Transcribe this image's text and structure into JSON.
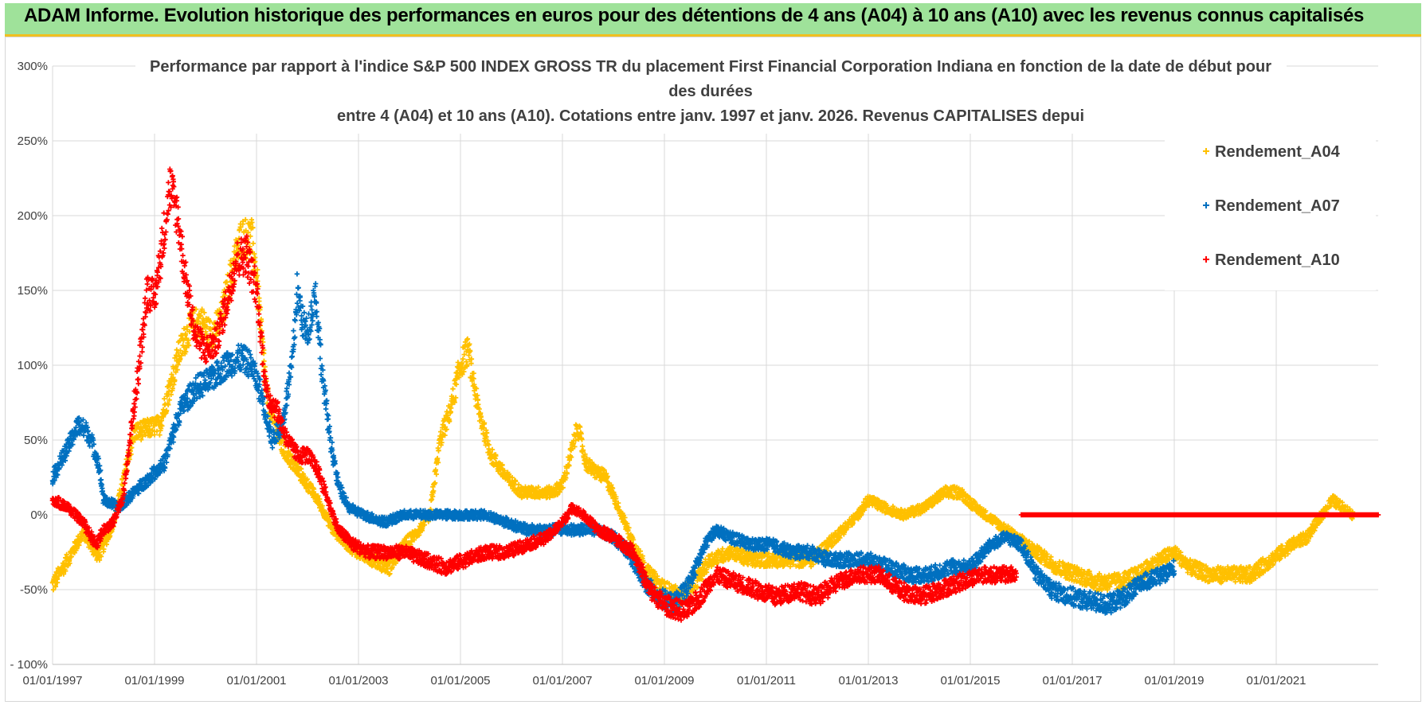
{
  "banner": {
    "text": "ADAM Informe. Evolution historique des performances en euros pour des détentions de 4 ans (A04) à 10 ans (A10) avec les revenus connus capitalisés"
  },
  "chart_data": {
    "type": "scatter",
    "title_lines": [
      "Performance par rapport à l'indice S&P 500 INDEX GROSS TR  du placement First Financial Corporation Indiana en fonction de la date de début pour",
      "des durées",
      "entre 4 (A04) et 10 ans (A10).  Cotations entre janv. 1997 et janv. 2026. Revenus CAPITALISES depui"
    ],
    "x_tick_labels": [
      "01/01/1997",
      "01/01/1999",
      "01/01/2001",
      "01/01/2003",
      "01/01/2005",
      "01/01/2007",
      "01/01/2009",
      "01/01/2011",
      "01/01/2013",
      "01/01/2015",
      "01/01/2017",
      "01/01/2019",
      "01/01/2021"
    ],
    "x_range": [
      1997.0,
      2023.0
    ],
    "y_tick_labels": [
      "300%",
      "250%",
      "200%",
      "150%",
      "100%",
      "50%",
      "0%",
      "-50%",
      "- 100%"
    ],
    "y_range": [
      -100,
      300
    ],
    "y_unit": "%",
    "grid": true,
    "legend_position": "top-right",
    "series": [
      {
        "name": "Rendement_A04",
        "color": "#ffc000",
        "anchors": [
          [
            1997.0,
            -47
          ],
          [
            1997.3,
            -30
          ],
          [
            1997.6,
            -12
          ],
          [
            1997.9,
            -28
          ],
          [
            1998.2,
            -5
          ],
          [
            1998.4,
            25
          ],
          [
            1998.6,
            55
          ],
          [
            1998.9,
            58
          ],
          [
            1999.1,
            60
          ],
          [
            1999.3,
            85
          ],
          [
            1999.5,
            110
          ],
          [
            1999.7,
            125
          ],
          [
            1999.9,
            130
          ],
          [
            2000.1,
            120
          ],
          [
            2000.3,
            130
          ],
          [
            2000.5,
            160
          ],
          [
            2000.7,
            185
          ],
          [
            2000.9,
            185
          ],
          [
            2001.0,
            160
          ],
          [
            2001.2,
            80
          ],
          [
            2001.5,
            45
          ],
          [
            2001.8,
            30
          ],
          [
            2002.0,
            20
          ],
          [
            2002.2,
            10
          ],
          [
            2002.5,
            -10
          ],
          [
            2002.8,
            -20
          ],
          [
            2003.0,
            -25
          ],
          [
            2003.3,
            -30
          ],
          [
            2003.6,
            -35
          ],
          [
            2003.9,
            -20
          ],
          [
            2004.2,
            -10
          ],
          [
            2004.4,
            0
          ],
          [
            2004.6,
            50
          ],
          [
            2004.8,
            70
          ],
          [
            2005.0,
            100
          ],
          [
            2005.15,
            110
          ],
          [
            2005.35,
            70
          ],
          [
            2005.6,
            40
          ],
          [
            2005.9,
            25
          ],
          [
            2006.2,
            15
          ],
          [
            2006.5,
            15
          ],
          [
            2006.8,
            15
          ],
          [
            2007.0,
            20
          ],
          [
            2007.2,
            45
          ],
          [
            2007.3,
            60
          ],
          [
            2007.45,
            35
          ],
          [
            2007.6,
            30
          ],
          [
            2007.85,
            25
          ],
          [
            2008.1,
            5
          ],
          [
            2008.4,
            -20
          ],
          [
            2008.7,
            -40
          ],
          [
            2009.0,
            -50
          ],
          [
            2009.3,
            -55
          ],
          [
            2009.6,
            -45
          ],
          [
            2009.9,
            -30
          ],
          [
            2010.3,
            -25
          ],
          [
            2010.7,
            -30
          ],
          [
            2011.1,
            -30
          ],
          [
            2011.5,
            -30
          ],
          [
            2011.9,
            -30
          ],
          [
            2012.2,
            -20
          ],
          [
            2012.5,
            -10
          ],
          [
            2012.8,
            0
          ],
          [
            2013.0,
            10
          ],
          [
            2013.3,
            5
          ],
          [
            2013.7,
            0
          ],
          [
            2014.1,
            5
          ],
          [
            2014.5,
            15
          ],
          [
            2014.8,
            15
          ],
          [
            2015.1,
            5
          ],
          [
            2015.5,
            -5
          ],
          [
            2015.9,
            -15
          ],
          [
            2016.3,
            -25
          ],
          [
            2016.7,
            -35
          ],
          [
            2017.1,
            -40
          ],
          [
            2017.5,
            -45
          ],
          [
            2017.9,
            -45
          ],
          [
            2018.3,
            -40
          ],
          [
            2018.7,
            -30
          ],
          [
            2019.0,
            -25
          ],
          [
            2019.3,
            -35
          ],
          [
            2019.7,
            -40
          ],
          [
            2020.1,
            -40
          ],
          [
            2020.5,
            -40
          ],
          [
            2020.9,
            -30
          ],
          [
            2021.3,
            -20
          ],
          [
            2021.6,
            -15
          ],
          [
            2021.9,
            0
          ],
          [
            2022.1,
            10
          ],
          [
            2022.3,
            5
          ],
          [
            2022.5,
            0
          ]
        ]
      },
      {
        "name": "Rendement_A07",
        "color": "#0070c0",
        "anchors": [
          [
            1997.0,
            25
          ],
          [
            1997.3,
            45
          ],
          [
            1997.5,
            60
          ],
          [
            1997.7,
            55
          ],
          [
            1997.9,
            35
          ],
          [
            1998.0,
            10
          ],
          [
            1998.3,
            5
          ],
          [
            1998.6,
            15
          ],
          [
            1998.9,
            25
          ],
          [
            1999.2,
            35
          ],
          [
            1999.5,
            70
          ],
          [
            1999.8,
            85
          ],
          [
            2000.1,
            90
          ],
          [
            2000.4,
            100
          ],
          [
            2000.7,
            105
          ],
          [
            2000.9,
            100
          ],
          [
            2001.1,
            80
          ],
          [
            2001.3,
            50
          ],
          [
            2001.5,
            60
          ],
          [
            2001.7,
            100
          ],
          [
            2001.8,
            150
          ],
          [
            2001.9,
            130
          ],
          [
            2002.0,
            120
          ],
          [
            2002.15,
            150
          ],
          [
            2002.3,
            90
          ],
          [
            2002.45,
            50
          ],
          [
            2002.6,
            20
          ],
          [
            2002.8,
            5
          ],
          [
            2003.1,
            0
          ],
          [
            2003.5,
            -5
          ],
          [
            2003.9,
            0
          ],
          [
            2004.3,
            0
          ],
          [
            2004.7,
            0
          ],
          [
            2005.1,
            0
          ],
          [
            2005.5,
            0
          ],
          [
            2005.9,
            -5
          ],
          [
            2006.3,
            -10
          ],
          [
            2006.7,
            -10
          ],
          [
            2007.0,
            -10
          ],
          [
            2007.4,
            -10
          ],
          [
            2007.7,
            -10
          ],
          [
            2008.0,
            -15
          ],
          [
            2008.3,
            -25
          ],
          [
            2008.6,
            -45
          ],
          [
            2008.9,
            -55
          ],
          [
            2009.2,
            -60
          ],
          [
            2009.5,
            -45
          ],
          [
            2009.8,
            -20
          ],
          [
            2010.0,
            -10
          ],
          [
            2010.3,
            -15
          ],
          [
            2010.7,
            -20
          ],
          [
            2011.1,
            -20
          ],
          [
            2011.5,
            -25
          ],
          [
            2011.9,
            -25
          ],
          [
            2012.2,
            -30
          ],
          [
            2012.6,
            -30
          ],
          [
            2013.0,
            -30
          ],
          [
            2013.4,
            -35
          ],
          [
            2013.8,
            -40
          ],
          [
            2014.2,
            -40
          ],
          [
            2014.6,
            -35
          ],
          [
            2015.0,
            -35
          ],
          [
            2015.4,
            -20
          ],
          [
            2015.7,
            -15
          ],
          [
            2016.0,
            -20
          ],
          [
            2016.3,
            -40
          ],
          [
            2016.6,
            -50
          ],
          [
            2017.0,
            -55
          ],
          [
            2017.4,
            -58
          ],
          [
            2017.7,
            -60
          ],
          [
            2018.0,
            -55
          ],
          [
            2018.4,
            -45
          ],
          [
            2018.8,
            -40
          ],
          [
            2019.0,
            -35
          ]
        ]
      },
      {
        "name": "Rendement_A10",
        "color": "#ff0000",
        "anchors": [
          [
            1997.0,
            10
          ],
          [
            1997.3,
            5
          ],
          [
            1997.6,
            -5
          ],
          [
            1997.85,
            -20
          ],
          [
            1998.0,
            -10
          ],
          [
            1998.2,
            -5
          ],
          [
            1998.4,
            15
          ],
          [
            1998.55,
            60
          ],
          [
            1998.7,
            100
          ],
          [
            1998.85,
            150
          ],
          [
            1999.0,
            145
          ],
          [
            1999.15,
            180
          ],
          [
            1999.3,
            220
          ],
          [
            1999.45,
            200
          ],
          [
            1999.6,
            160
          ],
          [
            1999.8,
            120
          ],
          [
            2000.0,
            110
          ],
          [
            2000.2,
            115
          ],
          [
            2000.4,
            140
          ],
          [
            2000.6,
            170
          ],
          [
            2000.8,
            175
          ],
          [
            2001.0,
            150
          ],
          [
            2001.2,
            80
          ],
          [
            2001.4,
            70
          ],
          [
            2001.6,
            50
          ],
          [
            2001.8,
            40
          ],
          [
            2002.0,
            40
          ],
          [
            2002.2,
            30
          ],
          [
            2002.4,
            10
          ],
          [
            2002.6,
            -10
          ],
          [
            2002.9,
            -20
          ],
          [
            2003.2,
            -25
          ],
          [
            2003.6,
            -25
          ],
          [
            2003.9,
            -25
          ],
          [
            2004.3,
            -30
          ],
          [
            2004.7,
            -35
          ],
          [
            2005.1,
            -30
          ],
          [
            2005.5,
            -25
          ],
          [
            2005.9,
            -25
          ],
          [
            2006.3,
            -20
          ],
          [
            2006.7,
            -15
          ],
          [
            2007.0,
            -5
          ],
          [
            2007.2,
            5
          ],
          [
            2007.4,
            0
          ],
          [
            2007.7,
            -10
          ],
          [
            2008.0,
            -15
          ],
          [
            2008.4,
            -25
          ],
          [
            2008.7,
            -50
          ],
          [
            2009.0,
            -60
          ],
          [
            2009.4,
            -65
          ],
          [
            2009.7,
            -55
          ],
          [
            2010.0,
            -40
          ],
          [
            2010.4,
            -45
          ],
          [
            2010.8,
            -50
          ],
          [
            2011.2,
            -55
          ],
          [
            2011.6,
            -50
          ],
          [
            2012.0,
            -55
          ],
          [
            2012.4,
            -45
          ],
          [
            2012.8,
            -40
          ],
          [
            2013.2,
            -40
          ],
          [
            2013.6,
            -50
          ],
          [
            2014.0,
            -55
          ],
          [
            2014.4,
            -50
          ],
          [
            2014.8,
            -45
          ],
          [
            2015.2,
            -40
          ],
          [
            2015.6,
            -40
          ],
          [
            2015.9,
            -40
          ]
        ],
        "flat_segment": {
          "from": 2016.0,
          "to": 2023.0,
          "value": 0
        }
      }
    ]
  }
}
